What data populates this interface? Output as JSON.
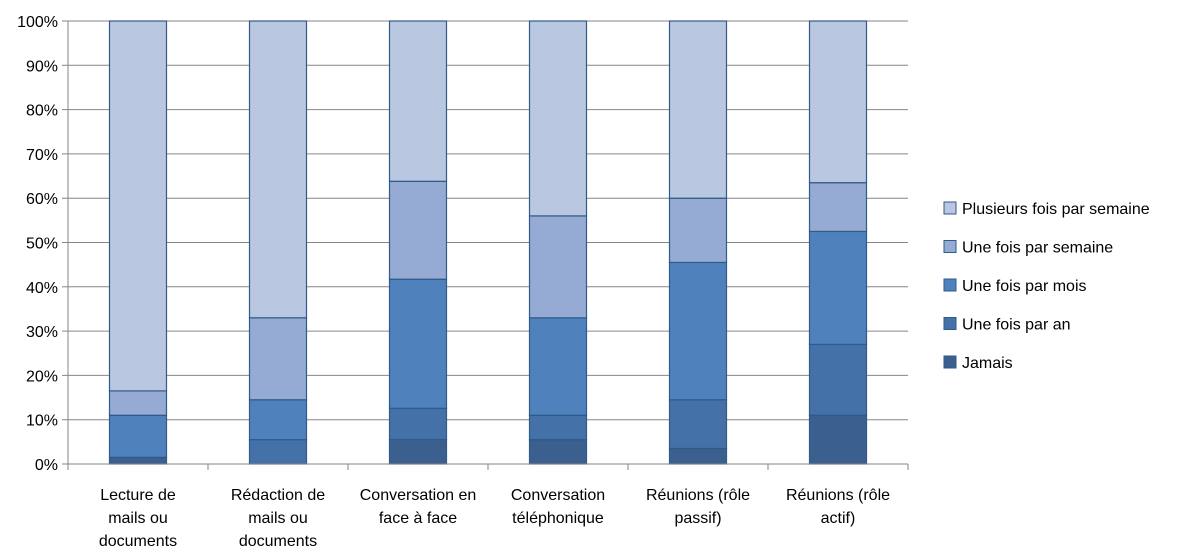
{
  "chart_data": {
    "type": "bar",
    "stacked": true,
    "percent_stacked": true,
    "categories": [
      [
        "Lecture de",
        "mails ou",
        "documents"
      ],
      [
        "Rédaction de",
        "mails ou",
        "documents"
      ],
      [
        "Conversation en",
        "face à face"
      ],
      [
        "Conversation",
        "téléphonique"
      ],
      [
        "Réunions (rôle",
        "passif)"
      ],
      [
        "Réunions (rôle",
        "actif)"
      ]
    ],
    "series": [
      {
        "name": "Jamais",
        "color": "#3B5F8F",
        "values": [
          1.5,
          0,
          5.5,
          5.5,
          3.5,
          11
        ]
      },
      {
        "name": "Une fois par an",
        "color": "#4472A8",
        "values": [
          0,
          5.5,
          7,
          5.5,
          11,
          16
        ]
      },
      {
        "name": "Une fois par mois",
        "color": "#4F81BD",
        "values": [
          9.5,
          9,
          29,
          22,
          31,
          25.5
        ]
      },
      {
        "name": "Une fois par semaine",
        "color": "#95ABD3",
        "values": [
          5.5,
          18.5,
          22,
          23,
          14.5,
          11
        ]
      },
      {
        "name": "Plusieurs fois par semaine",
        "color": "#B9C7E1",
        "values": [
          83.5,
          67,
          36,
          44,
          40,
          36.5
        ]
      }
    ],
    "y_ticks": [
      "0%",
      "10%",
      "20%",
      "30%",
      "40%",
      "50%",
      "60%",
      "70%",
      "80%",
      "90%",
      "100%"
    ],
    "ylim": [
      0,
      100
    ],
    "grid": true,
    "legend_position": "right",
    "title": "",
    "xlabel": "",
    "ylabel": ""
  }
}
